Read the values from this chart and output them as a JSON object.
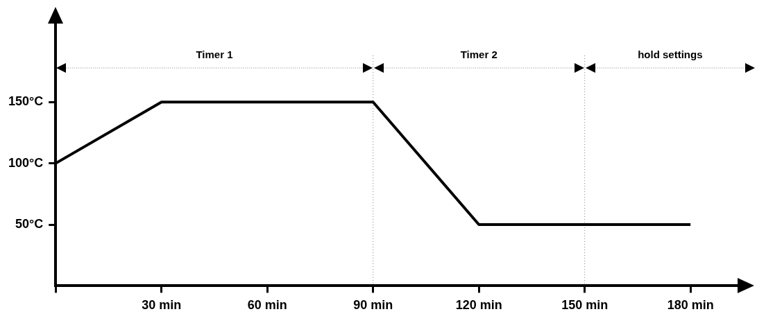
{
  "chart_data": {
    "type": "line",
    "x": [
      0,
      30,
      90,
      120,
      180
    ],
    "series": [
      {
        "color": "#000000",
        "values": [
          100,
          150,
          150,
          50,
          50
        ]
      }
    ],
    "xlim": [
      0,
      190
    ],
    "ylim": [
      0,
      205
    ],
    "xticks": [
      {
        "value": 0,
        "label": null
      },
      {
        "value": 30,
        "label": "30 min"
      },
      {
        "value": 60,
        "label": "60 min"
      },
      {
        "value": 90,
        "label": "90 min"
      },
      {
        "value": 120,
        "label": "120 min"
      },
      {
        "value": 150,
        "label": "150 min"
      },
      {
        "value": 180,
        "label": "180 min"
      }
    ],
    "yticks": [
      {
        "value": 50,
        "label": "50°C"
      },
      {
        "value": 100,
        "label": "100°C"
      },
      {
        "value": 150,
        "label": "150°C"
      }
    ],
    "ref_lines": [
      {
        "axis": "x",
        "value": 90,
        "label": null,
        "color": "#808080",
        "line_style": "dotted"
      },
      {
        "axis": "x",
        "value": 150,
        "label": null,
        "color": "#808080",
        "line_style": "dotted"
      }
    ],
    "annotations": [
      "Timer 1",
      "Timer 2",
      "hold settings"
    ],
    "grid": false,
    "legend": false,
    "marker": "none",
    "line_style": "solid"
  }
}
